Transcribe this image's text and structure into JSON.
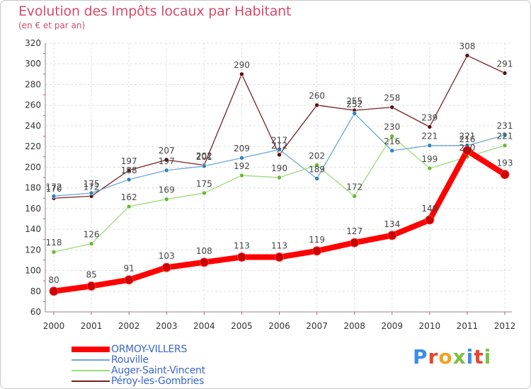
{
  "title": "Evolution des Impôts locaux par Habitant",
  "subtitle": "(en € et par an)",
  "logo_text": "Proxiti",
  "chart_data": {
    "type": "line",
    "title": "Evolution des Impôts locaux par Habitant",
    "subtitle": "(en € et par an)",
    "x": [
      2000,
      2001,
      2002,
      2003,
      2004,
      2005,
      2006,
      2007,
      2008,
      2009,
      2010,
      2011,
      2012
    ],
    "ylim": [
      60,
      320
    ],
    "yticks": [
      60,
      80,
      100,
      120,
      140,
      160,
      180,
      200,
      220,
      240,
      260,
      280,
      300,
      320
    ],
    "grid": true,
    "legend_position": "bottom-left",
    "series": [
      {
        "name": "ORMOY-VILLERS",
        "color": "#ff0000",
        "marker": "#cc0000",
        "values": [
          80,
          85,
          91,
          103,
          108,
          113,
          113,
          119,
          127,
          134,
          149,
          216,
          193
        ],
        "labels": [
          "80",
          "85",
          "91",
          "103",
          "108",
          "113",
          "113",
          "119",
          "127",
          "134",
          "149",
          "216",
          "193"
        ]
      },
      {
        "name": "Rouville",
        "color": "#6aa8d8",
        "marker": "#2e7fc0",
        "values": [
          172,
          175,
          188,
          197,
          201,
          209,
          217,
          189,
          252,
          216,
          221,
          221,
          231
        ],
        "labels": [
          "172",
          "175",
          "188",
          "197",
          "201",
          "209",
          "217",
          "189",
          "252",
          "216",
          "221",
          "221",
          "231"
        ]
      },
      {
        "name": "Auger-Saint-Vincent",
        "color": "#99dd77",
        "marker": "#66bb33",
        "values": [
          118,
          126,
          162,
          169,
          175,
          192,
          190,
          202,
          172,
          230,
          199,
          210,
          221
        ],
        "labels": [
          "118",
          "126",
          "162",
          "169",
          "175",
          "192",
          "190",
          "202",
          "172",
          "230",
          "199",
          "210",
          "221"
        ]
      },
      {
        "name": "Péroy-les-Gombries",
        "color": "#7a2020",
        "marker": "#5a1010",
        "values": [
          170,
          172,
          197,
          207,
          202,
          290,
          212,
          260,
          255,
          258,
          239,
          308,
          291
        ],
        "labels": [
          "170",
          "172",
          "197",
          "207",
          "202",
          "290",
          "212",
          "260",
          "255",
          "258",
          "239",
          "308",
          "291"
        ]
      }
    ]
  }
}
